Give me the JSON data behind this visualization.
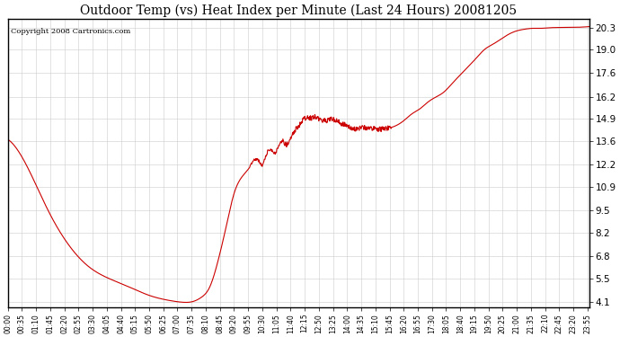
{
  "title": "Outdoor Temp (vs) Heat Index per Minute (Last 24 Hours) 20081205",
  "copyright_text": "Copyright 2008 Cartronics.com",
  "line_color": "#cc0000",
  "background_color": "#ffffff",
  "grid_color": "#cccccc",
  "y_ticks": [
    4.1,
    5.5,
    6.8,
    8.2,
    9.5,
    10.9,
    12.2,
    13.6,
    14.9,
    16.2,
    17.6,
    19.0,
    20.3
  ],
  "ylim": [
    3.8,
    20.8
  ],
  "x_tick_labels": [
    "00:00",
    "00:35",
    "01:10",
    "01:45",
    "02:20",
    "02:55",
    "03:30",
    "04:05",
    "04:40",
    "05:15",
    "05:50",
    "06:25",
    "07:00",
    "07:35",
    "08:10",
    "08:45",
    "09:20",
    "09:55",
    "10:30",
    "11:05",
    "11:40",
    "12:15",
    "12:50",
    "13:25",
    "14:00",
    "14:35",
    "15:10",
    "15:45",
    "16:20",
    "16:55",
    "17:30",
    "18:05",
    "18:40",
    "19:15",
    "19:50",
    "20:25",
    "21:00",
    "21:35",
    "22:10",
    "22:45",
    "23:20",
    "23:55"
  ],
  "num_points": 1440,
  "key_points": {
    "0": 13.7,
    "50": 12.0,
    "100": 9.5,
    "150": 7.5,
    "200": 6.2,
    "250": 5.5,
    "300": 5.0,
    "350": 4.5,
    "400": 4.2,
    "430": 4.1,
    "460": 4.15,
    "480": 4.4,
    "500": 5.0,
    "520": 6.5,
    "540": 8.5,
    "560": 10.5,
    "580": 11.5,
    "600": 12.1,
    "620": 12.5,
    "630": 12.2,
    "640": 12.8,
    "650": 13.1,
    "660": 12.9,
    "670": 13.3,
    "680": 13.6,
    "690": 13.4,
    "700": 13.8,
    "710": 14.2,
    "720": 14.5,
    "730": 14.8,
    "740": 15.0,
    "750": 14.95,
    "760": 15.05,
    "770": 14.9,
    "780": 14.85,
    "790": 14.8,
    "800": 14.9,
    "810": 14.85,
    "820": 14.7,
    "830": 14.6,
    "840": 14.5,
    "850": 14.4,
    "860": 14.3,
    "870": 14.35,
    "880": 14.4,
    "900": 14.35,
    "920": 14.3,
    "940": 14.35,
    "960": 14.5,
    "980": 14.8,
    "1000": 15.2,
    "1020": 15.5,
    "1040": 15.9,
    "1060": 16.2,
    "1080": 16.5,
    "1100": 17.0,
    "1120": 17.5,
    "1140": 18.0,
    "1160": 18.5,
    "1180": 19.0,
    "1200": 19.3,
    "1220": 19.6,
    "1240": 19.9,
    "1260": 20.1,
    "1280": 20.2,
    "1300": 20.25,
    "1320": 20.25,
    "1340": 20.28,
    "1380": 20.3,
    "1420": 20.32,
    "1439": 20.35
  }
}
